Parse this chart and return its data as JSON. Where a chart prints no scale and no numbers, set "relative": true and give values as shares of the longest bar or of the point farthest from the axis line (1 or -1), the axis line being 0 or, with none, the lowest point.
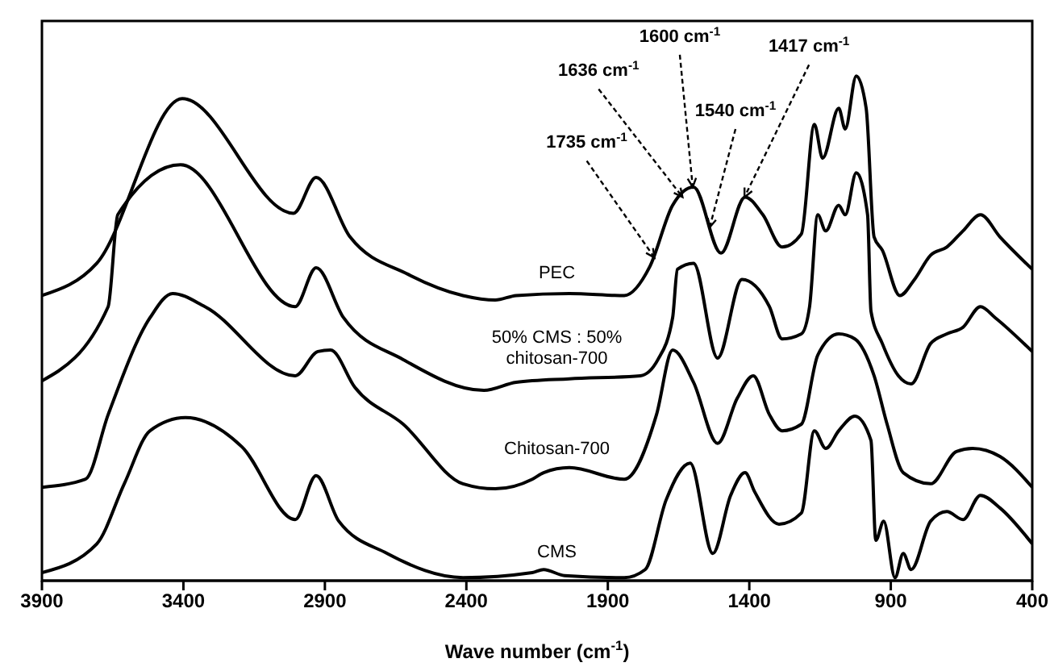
{
  "chart_data": {
    "type": "line",
    "relative": true,
    "xlabel": "Wave number (cm$^{-1}$)",
    "xlim": [
      3900,
      400
    ],
    "xticks": [
      3900,
      3400,
      2900,
      2400,
      1900,
      1400,
      900,
      400
    ],
    "marker": "none",
    "line_style": "solid",
    "series": [
      {
        "name": "PEC",
        "color": "#000000",
        "x": [
          3900,
          3706,
          3404,
          3011,
          2931,
          2811,
          2606,
          2412,
          2298,
          2224,
          2036,
          1842,
          1751,
          1671,
          1597,
          1500,
          1415,
          1352,
          1284,
          1216,
          1170,
          1141,
          1084,
          1061,
          1022,
          987,
          959,
          930,
          868,
          816,
          759,
          702,
          645,
          583,
          514,
          400
        ],
        "values": [
          0.565,
          0.629,
          0.955,
          0.728,
          0.799,
          0.681,
          0.607,
          0.565,
          0.556,
          0.565,
          0.569,
          0.565,
          0.623,
          0.744,
          0.78,
          0.649,
          0.76,
          0.725,
          0.661,
          0.687,
          0.904,
          0.837,
          0.936,
          0.895,
          1,
          0.936,
          0.681,
          0.655,
          0.565,
          0.597,
          0.645,
          0.661,
          0.693,
          0.725,
          0.681,
          0.617
        ]
      },
      {
        "name": "50% CMS : 50% chitosan-700",
        "color": "#000000",
        "x": [
          3900,
          3666,
          3632,
          3410,
          3005,
          2931,
          2834,
          2623,
          2338,
          2224,
          2036,
          1785,
          1723,
          1671,
          1654,
          1597,
          1512,
          1426,
          1329,
          1284,
          1216,
          1187,
          1158,
          1130,
          1084,
          1061,
          1022,
          982,
          970,
          930,
          873,
          828,
          759,
          702,
          645,
          583,
          531,
          400
        ],
        "values": [
          0.396,
          0.543,
          0.725,
          0.824,
          0.543,
          0.62,
          0.521,
          0.438,
          0.377,
          0.393,
          0.4,
          0.406,
          0.438,
          0.521,
          0.617,
          0.629,
          0.441,
          0.597,
          0.543,
          0.479,
          0.489,
          0.543,
          0.725,
          0.693,
          0.744,
          0.725,
          0.808,
          0.725,
          0.534,
          0.47,
          0.406,
          0.39,
          0.47,
          0.489,
          0.502,
          0.543,
          0.521,
          0.454
        ]
      },
      {
        "name": "Chitosan-700",
        "color": "#000000",
        "x": [
          3900,
          3746,
          3666,
          3518,
          3438,
          3324,
          3005,
          2925,
          2880,
          2794,
          2623,
          2412,
          2298,
          2167,
          2127,
          2036,
          1842,
          1728,
          1671,
          1597,
          1512,
          1443,
          1386,
          1329,
          1284,
          1216,
          1158,
          1084,
          1027,
          959,
          913,
          856,
          759,
          668,
          611,
          514,
          400
        ],
        "values": [
          0.185,
          0.201,
          0.329,
          0.521,
          0.569,
          0.543,
          0.406,
          0.454,
          0.457,
          0.383,
          0.31,
          0.192,
          0.182,
          0.201,
          0.214,
          0.224,
          0.201,
          0.329,
          0.457,
          0.393,
          0.272,
          0.361,
          0.406,
          0.329,
          0.297,
          0.31,
          0.447,
          0.489,
          0.479,
          0.406,
          0.31,
          0.214,
          0.192,
          0.256,
          0.262,
          0.246,
          0.185
        ]
      },
      {
        "name": "CMS",
        "color": "#000000",
        "x": [
          3900,
          3706,
          3609,
          3518,
          3393,
          3193,
          3005,
          2931,
          2851,
          2680,
          2412,
          2167,
          2127,
          2053,
          1842,
          1768,
          1694,
          1609,
          1529,
          1466,
          1415,
          1381,
          1295,
          1216,
          1170,
          1130,
          1084,
          1027,
          970,
          953,
          925,
          885,
          856,
          828,
          759,
          702,
          645,
          583,
          514,
          400
        ],
        "values": [
          0.016,
          0.073,
          0.192,
          0.297,
          0.323,
          0.265,
          0.121,
          0.208,
          0.118,
          0.054,
          0.006,
          0.016,
          0.022,
          0.01,
          0.006,
          0.022,
          0.16,
          0.233,
          0.054,
          0.169,
          0.214,
          0.176,
          0.112,
          0.134,
          0.297,
          0.262,
          0.297,
          0.326,
          0.278,
          0.08,
          0.118,
          0.006,
          0.054,
          0.022,
          0.118,
          0.137,
          0.121,
          0.169,
          0.144,
          0.073
        ]
      }
    ],
    "annotations": [
      {
        "text": "1735 cm$^{-1}$",
        "x": 1735,
        "y": 0.64
      },
      {
        "text": "1636 cm$^{-1}$",
        "x": 1636,
        "y": 0.76
      },
      {
        "text": "1600 cm$^{-1}$",
        "x": 1600,
        "y": 0.78
      },
      {
        "text": "1540 cm$^{-1}$",
        "x": 1540,
        "y": 0.7
      },
      {
        "text": "1417 cm$^{-1}$",
        "x": 1417,
        "y": 0.76
      }
    ]
  }
}
